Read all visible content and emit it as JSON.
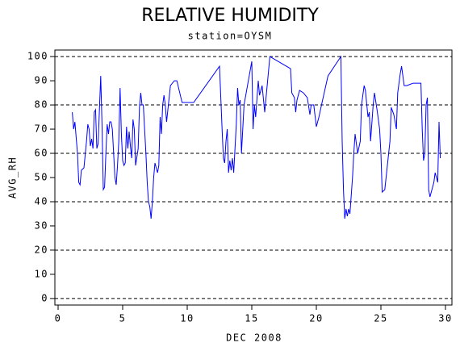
{
  "chart_data": {
    "type": "line",
    "title": "RELATIVE HUMIDITY",
    "subtitle": "station=OYSM",
    "x_label": "DEC 2008",
    "y_label": "AVG_RH",
    "color": "#0000ff",
    "xlim": [
      -0.25,
      30.5
    ],
    "xticks": [
      0,
      5,
      10,
      15,
      20,
      25,
      30
    ],
    "ylim": [
      -2.7,
      102.7
    ],
    "yticks": [
      0,
      10,
      20,
      30,
      40,
      50,
      60,
      70,
      80,
      90,
      100
    ],
    "reference_lines": [
      0,
      20,
      40,
      60,
      80,
      100
    ],
    "x": [
      1.1,
      1.2,
      1.3,
      1.5,
      1.6,
      1.7,
      1.8,
      2.0,
      2.2,
      2.3,
      2.4,
      2.5,
      2.6,
      2.7,
      2.8,
      2.9,
      3.0,
      3.1,
      3.3,
      3.4,
      3.5,
      3.6,
      3.7,
      3.8,
      3.9,
      4.0,
      4.1,
      4.2,
      4.3,
      4.4,
      4.5,
      4.6,
      4.7,
      4.8,
      4.9,
      5.0,
      5.1,
      5.2,
      5.3,
      5.4,
      5.5,
      5.6,
      5.7,
      5.8,
      5.9,
      6.0,
      6.2,
      6.3,
      6.4,
      6.5,
      6.6,
      6.7,
      6.8,
      6.9,
      7.0,
      7.1,
      7.2,
      7.3,
      7.4,
      7.5,
      7.7,
      7.8,
      7.9,
      8.0,
      8.1,
      8.2,
      8.3,
      8.4,
      8.5,
      8.7,
      9.0,
      9.2,
      9.6,
      10.5,
      12.5,
      12.7,
      12.8,
      12.9,
      13.0,
      13.1,
      13.2,
      13.3,
      13.4,
      13.5,
      13.6,
      13.8,
      13.9,
      14.0,
      14.1,
      14.2,
      14.4,
      14.6,
      14.8,
      15.0,
      15.1,
      15.2,
      15.3,
      15.5,
      15.6,
      15.8,
      16.0,
      16.4,
      18.0,
      18.1,
      18.3,
      18.4,
      18.5,
      18.7,
      19.0,
      19.3,
      19.5,
      19.6,
      19.8,
      20.0,
      20.2,
      20.4,
      20.9,
      21.9,
      22.0,
      22.1,
      22.2,
      22.3,
      22.4,
      22.5,
      22.6,
      22.8,
      22.9,
      23.0,
      23.2,
      23.4,
      23.5,
      23.7,
      23.8,
      24.0,
      24.1,
      24.2,
      24.4,
      24.5,
      24.7,
      24.9,
      25.0,
      25.1,
      25.3,
      25.5,
      25.7,
      25.8,
      26.0,
      26.2,
      26.3,
      26.5,
      26.6,
      26.8,
      27.0,
      27.5,
      28.1,
      28.2,
      28.3,
      28.4,
      28.5,
      28.6,
      28.7,
      28.8,
      29.0,
      29.1,
      29.2,
      29.4,
      29.5,
      29.6
    ],
    "values": [
      77,
      70,
      73,
      60,
      48,
      47,
      53,
      54,
      65,
      72,
      70,
      63,
      66,
      62,
      77,
      78,
      62,
      64,
      92,
      72,
      45,
      46,
      60,
      72,
      68,
      73,
      73,
      70,
      60,
      50,
      47,
      55,
      65,
      87,
      68,
      57,
      55,
      56,
      71,
      62,
      69,
      63,
      58,
      74,
      70,
      55,
      62,
      79,
      85,
      80,
      80,
      70,
      60,
      48,
      40,
      38,
      33,
      40,
      50,
      56,
      52,
      55,
      75,
      68,
      80,
      84,
      80,
      73,
      78,
      88,
      90,
      90,
      81,
      81,
      96,
      70,
      58,
      56,
      65,
      70,
      52,
      57,
      53,
      58,
      52,
      72,
      87,
      80,
      82,
      60,
      80,
      86,
      92,
      98,
      70,
      80,
      75,
      90,
      84,
      88,
      77,
      100,
      95,
      85,
      83,
      77,
      82,
      86,
      85,
      83,
      76,
      80,
      80,
      71,
      75,
      80,
      92,
      100,
      65,
      45,
      33,
      37,
      34,
      37,
      35,
      50,
      60,
      68,
      60,
      65,
      80,
      88,
      86,
      75,
      77,
      65,
      80,
      85,
      78,
      70,
      60,
      44,
      45,
      55,
      65,
      79,
      76,
      70,
      85,
      93,
      96,
      88,
      88,
      89,
      89,
      70,
      57,
      60,
      80,
      83,
      45,
      42,
      46,
      48,
      52,
      48,
      73,
      58
    ]
  }
}
